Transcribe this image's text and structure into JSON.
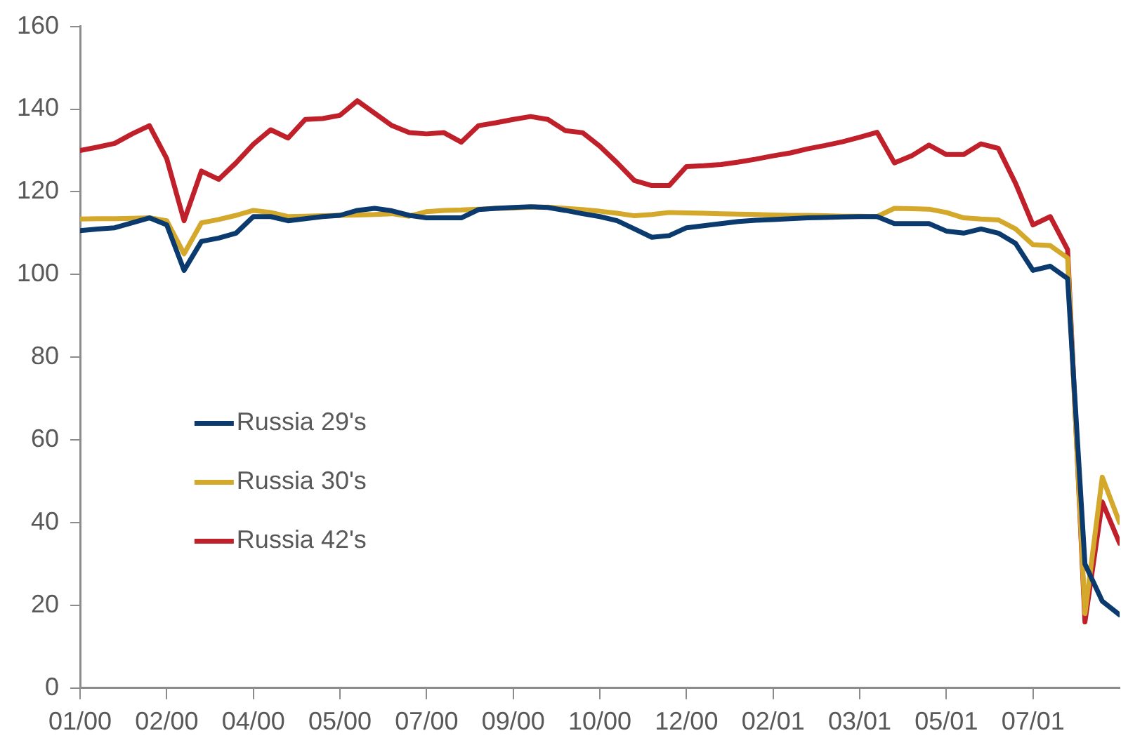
{
  "chart_data": {
    "type": "line",
    "categories": [
      "01/00",
      null,
      null,
      null,
      null,
      "02/00",
      null,
      null,
      null,
      null,
      "04/00",
      null,
      null,
      null,
      null,
      "05/00",
      null,
      null,
      null,
      null,
      "07/00",
      null,
      null,
      null,
      null,
      "09/00",
      null,
      null,
      null,
      null,
      "10/00",
      null,
      null,
      null,
      null,
      "12/00",
      null,
      null,
      null,
      null,
      "02/01",
      null,
      null,
      null,
      null,
      "03/01",
      null,
      null,
      null,
      null,
      "05/01",
      null,
      null,
      null,
      null,
      "07/01",
      null,
      null,
      null,
      null,
      null
    ],
    "ylim": [
      0,
      160
    ],
    "yticks": [
      0,
      20,
      40,
      60,
      80,
      100,
      120,
      140,
      160
    ],
    "grid": false,
    "legend": "left",
    "marker": "none",
    "line_style": "solid",
    "series": [
      {
        "name": "Russia 29's",
        "color": "#0b3a6e",
        "values": [
          110.6,
          111,
          111.3,
          112.5,
          113.7,
          112,
          101,
          108,
          108.8,
          110,
          114,
          114,
          113,
          113.5,
          114,
          114.3,
          115.5,
          116,
          115.4,
          114.3,
          113.7,
          113.7,
          113.7,
          115.7,
          116,
          116.2,
          116.4,
          116.2,
          115.5,
          114.7,
          114,
          113,
          111,
          109,
          109.4,
          111.3,
          111.8,
          112.3,
          112.8,
          113.1,
          113.3,
          113.5,
          113.7,
          113.8,
          113.9,
          114,
          114,
          112.3,
          112.3,
          112.3,
          110.5,
          110,
          111,
          110,
          107.5,
          101,
          102,
          99,
          30,
          21,
          17.7
        ]
      },
      {
        "name": "Russia 30's",
        "color": "#d4a82a",
        "values": [
          113.4,
          113.5,
          113.5,
          113.6,
          113.7,
          113,
          105,
          112.5,
          113.3,
          114.3,
          115.5,
          115,
          114,
          114.1,
          114.2,
          114.3,
          114.4,
          114.5,
          114.7,
          114.1,
          115.2,
          115.5,
          115.6,
          115.8,
          116,
          116.1,
          116.3,
          116.3,
          116,
          115.7,
          115.3,
          114.8,
          114.2,
          114.5,
          115,
          114.9,
          114.8,
          114.7,
          114.6,
          114.5,
          114.4,
          114.3,
          114.3,
          114.2,
          114.1,
          114.1,
          114,
          116,
          115.9,
          115.8,
          115,
          113.7,
          113.4,
          113.2,
          111,
          107.2,
          107,
          104,
          18,
          51,
          40
        ]
      },
      {
        "name": "Russia 42's",
        "color": "#c0202a",
        "values": [
          130,
          130.8,
          131.7,
          134,
          136,
          128,
          113,
          125,
          123,
          127,
          131.5,
          135,
          133,
          137.5,
          137.7,
          138.5,
          142,
          139,
          136,
          134.3,
          134,
          134.3,
          132,
          136,
          136.7,
          137.5,
          138.2,
          137.5,
          134.8,
          134.3,
          131,
          127,
          122.7,
          121.5,
          121.5,
          126.1,
          126.3,
          126.6,
          127.2,
          127.9,
          128.7,
          129.4,
          130.4,
          131.2,
          132.1,
          133.2,
          134.4,
          127,
          128.7,
          131.3,
          129,
          129,
          131.6,
          130.5,
          122,
          112,
          114,
          106,
          16,
          45,
          35
        ]
      }
    ]
  }
}
